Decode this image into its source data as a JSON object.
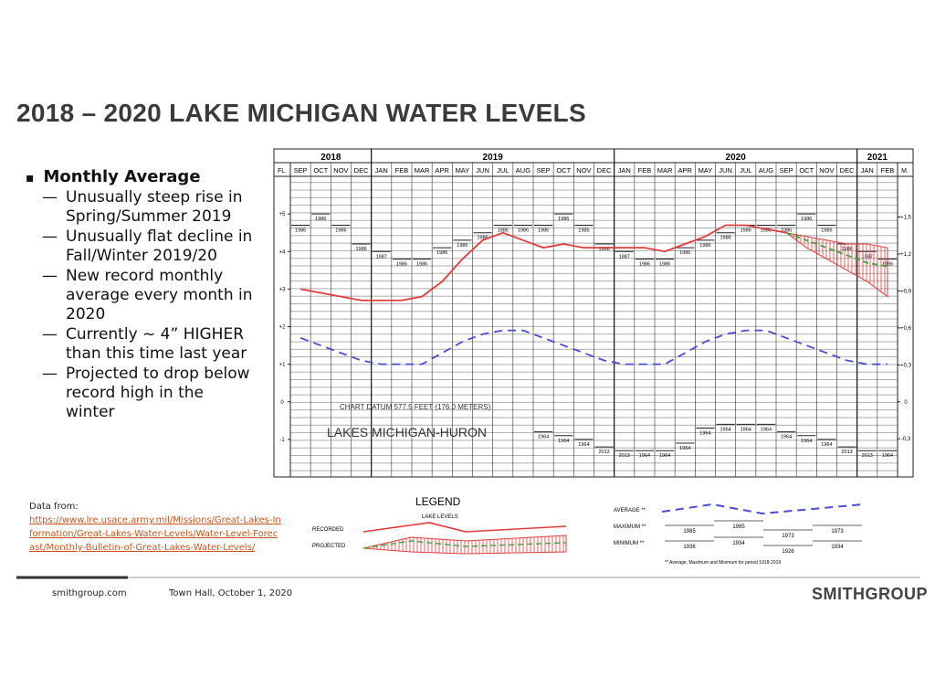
{
  "title": "2018 – 2020 LAKE MICHIGAN WATER LEVELS",
  "bullets": {
    "heading": "Monthly Average",
    "items": [
      "Unusually steep rise in Spring/Summer 2019",
      "Unusually flat decline in Fall/Winter 2019/20",
      "New record monthly average every month in 2020",
      "Currently ~ 4” HIGHER than this time last year",
      "Projected to drop below record high in the winter"
    ]
  },
  "source": {
    "label": "Data from:",
    "link": "https://www.lre.usace.army.mil/Missions/Great-Lakes-Information/Great-Lakes-Water-Levels/Water-Level-Forecast/Monthly-Bulletin-of-Great-Lakes-Water-Levels/"
  },
  "footer": {
    "site": "smithgroup.com",
    "event": "Town Hall, October 1, 2020",
    "brand": "SMITHGROUP"
  },
  "chart": {
    "type": "line",
    "categories": [
      "SEP",
      "OCT",
      "NOV",
      "DEC",
      "JAN",
      "FEB",
      "MAR",
      "APR",
      "MAY",
      "JUN",
      "JUL",
      "AUG",
      "SEP",
      "OCT",
      "NOV",
      "DEC",
      "JAN",
      "FEB",
      "MAR",
      "APR",
      "MAY",
      "JUN",
      "JUL",
      "AUG",
      "SEP",
      "OCT",
      "NOV",
      "DEC",
      "JAN",
      "FEB"
    ],
    "years": [
      "2018",
      "2019",
      "2020",
      "2021"
    ],
    "ylabel": "FL.",
    "y2label": "M.",
    "ylim": [
      -2,
      6
    ],
    "yticks": [
      {
        "value": 5,
        "label": "+5"
      },
      {
        "value": 4,
        "label": "+4"
      },
      {
        "value": 3,
        "label": "+3"
      },
      {
        "value": 2,
        "label": "+2"
      },
      {
        "value": 1,
        "label": "+1"
      },
      0,
      {
        "value": -1,
        "label": "-1"
      }
    ],
    "y2lim": [
      -0.61,
      1.83
    ],
    "y2ticks": [
      {
        "value": 1.5,
        "label": "+1,5"
      },
      {
        "value": 1.2,
        "label": "+1,2"
      },
      {
        "value": 0.9,
        "label": "+0,9"
      },
      {
        "value": 0.6,
        "label": "+0,6"
      },
      {
        "value": 0.3,
        "label": "+0,3"
      },
      0,
      {
        "value": -0.3,
        "label": "-0,3"
      }
    ],
    "annotations": [
      "CHART DATUM 577.5 FEET (176.0 METERS)",
      "LAKES MICHIGAN-HURON"
    ],
    "series": [
      {
        "name": "RECORDED",
        "color": "#e23c3c",
        "dash": "none",
        "values": [
          3.0,
          2.9,
          2.8,
          2.7,
          2.7,
          2.7,
          2.8,
          3.2,
          3.8,
          4.3,
          4.5,
          4.3,
          4.1,
          4.2,
          4.1,
          4.1,
          4.1,
          4.1,
          4.0,
          4.2,
          4.4,
          4.7,
          4.7,
          4.6,
          4.5,
          null,
          null,
          null,
          null,
          null
        ]
      },
      {
        "name": "PROJECTED",
        "color": "#3aa63a",
        "dash": "6 4",
        "values": [
          null,
          null,
          null,
          null,
          null,
          null,
          null,
          null,
          null,
          null,
          null,
          null,
          null,
          null,
          null,
          null,
          null,
          null,
          null,
          null,
          null,
          null,
          null,
          null,
          4.5,
          4.3,
          4.1,
          3.9,
          3.7,
          3.6
        ]
      },
      {
        "name": "AVERAGE **",
        "color": "#4b4bd8",
        "dash": "9 6",
        "values": [
          1.7,
          1.5,
          1.3,
          1.1,
          1.0,
          1.0,
          1.0,
          1.3,
          1.6,
          1.8,
          1.9,
          1.9,
          1.7,
          1.5,
          1.3,
          1.1,
          1.0,
          1.0,
          1.0,
          1.3,
          1.6,
          1.8,
          1.9,
          1.9,
          1.7,
          1.5,
          1.3,
          1.1,
          1.0,
          1.0
        ]
      }
    ],
    "projected_range": {
      "color": "#e23c3c",
      "upper": [
        null,
        null,
        null,
        null,
        null,
        null,
        null,
        null,
        null,
        null,
        null,
        null,
        null,
        null,
        null,
        null,
        null,
        null,
        null,
        null,
        null,
        null,
        null,
        null,
        4.5,
        4.4,
        4.3,
        4.2,
        4.2,
        4.1
      ],
      "lower": [
        null,
        null,
        null,
        null,
        null,
        null,
        null,
        null,
        null,
        null,
        null,
        null,
        null,
        null,
        null,
        null,
        null,
        null,
        null,
        null,
        null,
        null,
        null,
        null,
        4.5,
        4.1,
        3.8,
        3.5,
        3.2,
        2.8
      ]
    },
    "maximum": {
      "name": "MAXIMUM **",
      "values": [
        4.7,
        5.0,
        4.7,
        4.2,
        4.0,
        3.8,
        3.8,
        4.1,
        4.3,
        4.5,
        4.7,
        4.7,
        4.7,
        5.0,
        4.7,
        4.2,
        4.0,
        3.8,
        3.8,
        4.1,
        4.3,
        4.5,
        4.7,
        4.7,
        4.7,
        5.0,
        4.7,
        4.2,
        4.0,
        3.8
      ],
      "years": [
        "1986",
        "1986",
        "1986",
        "1986",
        "1987",
        "1986",
        "1986",
        "1986",
        "1986",
        "1986",
        "1986",
        "1986",
        "1986",
        "1986",
        "1986",
        "1986",
        "1987",
        "1986",
        "1986",
        "1986",
        "1986",
        "1986",
        "1986",
        "1986",
        "1986",
        "1986",
        "1986",
        "1986",
        "1987",
        "1986"
      ]
    },
    "minimum": {
      "name": "MINIMUM **",
      "values": [
        null,
        null,
        null,
        null,
        null,
        null,
        null,
        null,
        null,
        null,
        null,
        null,
        -0.8,
        -0.9,
        -1.0,
        -1.2,
        -1.3,
        -1.3,
        -1.3,
        -1.1,
        -0.7,
        -0.6,
        -0.6,
        -0.6,
        -0.8,
        -0.9,
        -1.0,
        -1.2,
        -1.3,
        -1.3
      ],
      "years": [
        null,
        null,
        null,
        null,
        null,
        null,
        null,
        null,
        null,
        null,
        null,
        null,
        "1964",
        "1964",
        "1964",
        "2013",
        "2013",
        "1964",
        "1964",
        "1964",
        "1964",
        "1964",
        "1964",
        "1964",
        "1964",
        "1964",
        "1964",
        "2013",
        "2013",
        "1964"
      ]
    }
  },
  "legend": {
    "title": "LEGEND",
    "subtitle": "LAKE LEVELS",
    "max_years": [
      "1985",
      "1985",
      "1973",
      "1973"
    ],
    "min_years": [
      "1936",
      "1934",
      "1926",
      "1934"
    ],
    "footnote": "** Average, Maximum and Minimum for period 1918-2019"
  }
}
